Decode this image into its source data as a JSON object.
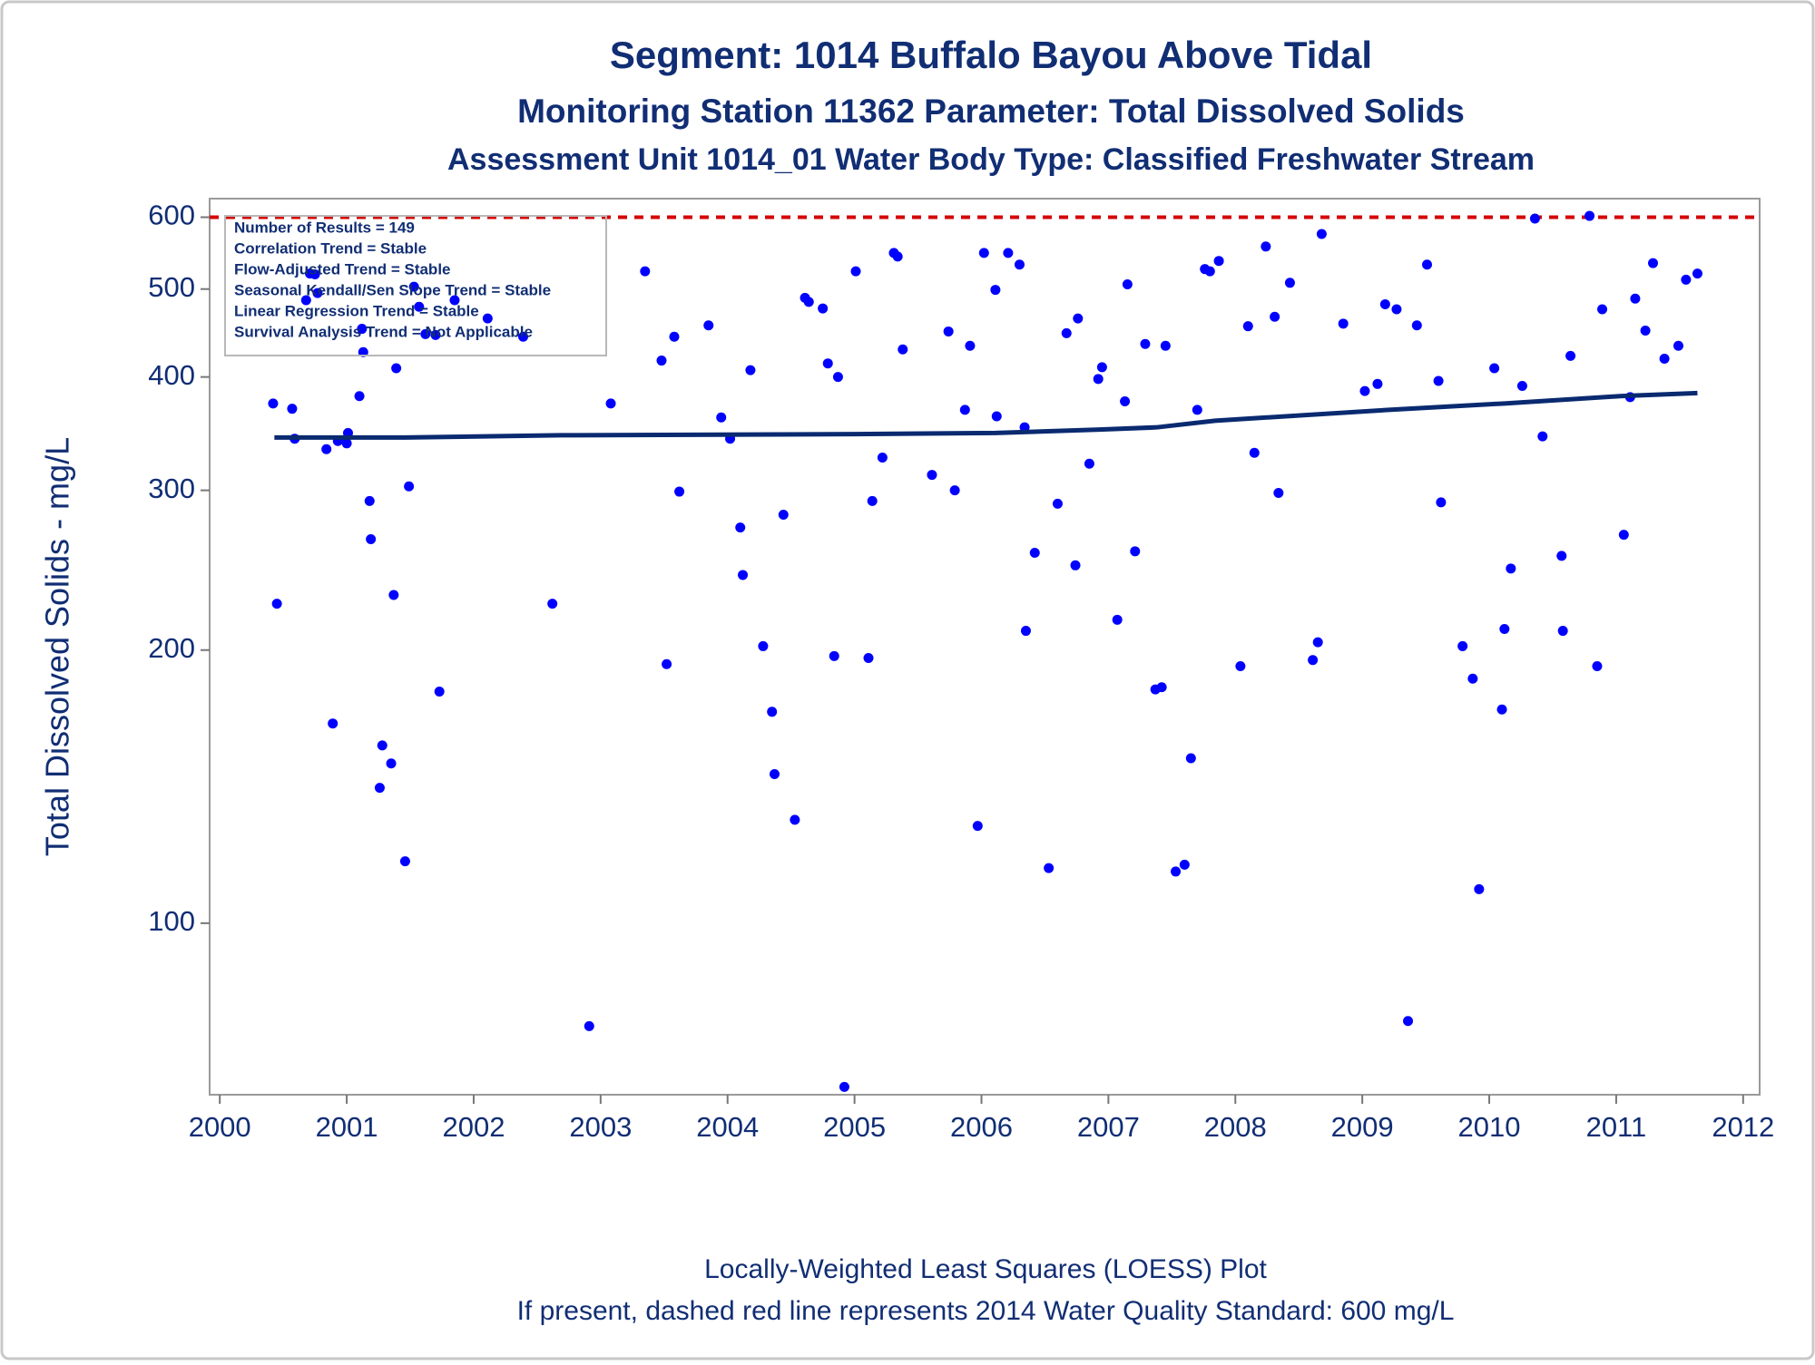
{
  "chart_data": {
    "type": "scatter",
    "title": "Segment: 1014  Buffalo Bayou Above Tidal",
    "subtitle": "Monitoring Station 11362 Parameter: Total Dissolved Solids",
    "subtitle2": "Assessment Unit 1014_01   Water Body Type: Classified Freshwater Stream",
    "y_label": "Total Dissolved Solids - mg/L",
    "footnotes": [
      "Locally-Weighted Least Squares (LOESS) Plot",
      "If present, dashed red line represents 2014 Water Quality Standard: 600   mg/L"
    ],
    "annotations": [
      "Number of Results = 149",
      "Correlation Trend = Stable",
      "Flow-Adjusted Trend = Stable",
      "Seasonal Kendall/Sen Slope Trend = Stable",
      "Linear Regression Trend = Stable",
      "Survival Analysis Trend = Not Applicable"
    ],
    "log_y": true,
    "xlim": [
      1999.92,
      2012.13
    ],
    "ylim": [
      64.7,
      629
    ],
    "xticks": [
      2000,
      2001,
      2002,
      2003,
      2004,
      2005,
      2006,
      2007,
      2008,
      2009,
      2010,
      2011,
      2012
    ],
    "yticks": [
      100,
      200,
      300,
      400,
      500,
      600
    ],
    "reference_line": {
      "value": 600,
      "color": "#d40000",
      "dashed": true
    },
    "series": [
      {
        "type": "scatter",
        "color": "#0000ff",
        "x": [
          2000.42,
          2000.45,
          2000.57,
          2000.59,
          2000.68,
          2000.71,
          2000.75,
          2000.77,
          2000.84,
          2000.89,
          2000.93,
          2000.99,
          2001.0,
          2001.01,
          2001.1,
          2001.12,
          2001.13,
          2001.18,
          2001.19,
          2001.28,
          2001.26,
          2001.35,
          2001.37,
          2001.39,
          2001.46,
          2001.49,
          2001.53,
          2001.57,
          2001.62,
          2001.7,
          2001.73,
          2001.85,
          2002.11,
          2002.39,
          2002.62,
          2002.91,
          2003.08,
          2003.35,
          2003.48,
          2003.52,
          2003.58,
          2003.62,
          2003.85,
          2003.95,
          2004.02,
          2004.1,
          2004.12,
          2004.18,
          2004.28,
          2004.35,
          2004.37,
          2004.44,
          2004.53,
          2004.61,
          2004.64,
          2004.75,
          2004.79,
          2004.84,
          2004.87,
          2004.92,
          2005.01,
          2005.11,
          2005.14,
          2005.22,
          2005.31,
          2005.34,
          2005.38,
          2005.61,
          2005.74,
          2005.79,
          2005.87,
          2005.91,
          2005.97,
          2006.02,
          2006.11,
          2006.12,
          2006.21,
          2006.3,
          2006.34,
          2006.35,
          2006.42,
          2006.53,
          2006.6,
          2006.67,
          2006.74,
          2006.76,
          2006.85,
          2006.92,
          2006.95,
          2007.07,
          2007.13,
          2007.15,
          2007.21,
          2007.29,
          2007.37,
          2007.42,
          2007.45,
          2007.53,
          2007.6,
          2007.65,
          2007.7,
          2007.76,
          2007.8,
          2007.87,
          2008.04,
          2008.1,
          2008.15,
          2008.24,
          2008.31,
          2008.34,
          2008.43,
          2008.61,
          2008.65,
          2008.68,
          2008.85,
          2009.02,
          2009.12,
          2009.18,
          2009.27,
          2009.36,
          2009.43,
          2009.51,
          2009.6,
          2009.62,
          2009.79,
          2009.87,
          2009.92,
          2010.04,
          2010.1,
          2010.12,
          2010.17,
          2010.26,
          2010.36,
          2010.42,
          2010.57,
          2010.58,
          2010.64,
          2010.79,
          2010.85,
          2010.89,
          2011.06,
          2011.11,
          2011.15,
          2011.23,
          2011.29,
          2011.38,
          2011.49,
          2011.55,
          2011.64
        ],
        "values": [
          374,
          225,
          369,
          342,
          486,
          520,
          519,
          495,
          333,
          166,
          340,
          341,
          338,
          347,
          381,
          452,
          426,
          292,
          265,
          157,
          141,
          150,
          230,
          409,
          117,
          303,
          503,
          478,
          446,
          445,
          180,
          486,
          464,
          443,
          225,
          77,
          374,
          523,
          417,
          193,
          443,
          299,
          456,
          361,
          342,
          273,
          242,
          407,
          202,
          171,
          146,
          282,
          130,
          489,
          484,
          476,
          414,
          197,
          400,
          66,
          523,
          196,
          292,
          326,
          548,
          543,
          429,
          312,
          449,
          300,
          368,
          433,
          128,
          548,
          499,
          362,
          548,
          532,
          352,
          210,
          256,
          115,
          290,
          447,
          248,
          464,
          321,
          398,
          410,
          216,
          376,
          506,
          257,
          435,
          181,
          182,
          433,
          114,
          116,
          152,
          368,
          526,
          523,
          537,
          192,
          455,
          330,
          557,
          466,
          298,
          508,
          195,
          204,
          575,
          458,
          386,
          393,
          481,
          475,
          78,
          456,
          532,
          396,
          291,
          202,
          186,
          109,
          409,
          172,
          211,
          246,
          391,
          598,
          344,
          254,
          210,
          422,
          602,
          192,
          475,
          268,
          380,
          488,
          450,
          534,
          419,
          433,
          512,
          520
        ]
      },
      {
        "type": "line",
        "color": "#0a2a70",
        "x": [
          2000.43,
          2001.46,
          2002.69,
          2005.01,
          2006.11,
          2006.93,
          2007.38,
          2007.84,
          2009.21,
          2010.12,
          2011.03,
          2011.64
        ],
        "values": [
          343,
          343,
          345,
          346,
          347,
          350,
          352,
          358,
          368,
          374,
          381,
          384
        ]
      }
    ]
  }
}
